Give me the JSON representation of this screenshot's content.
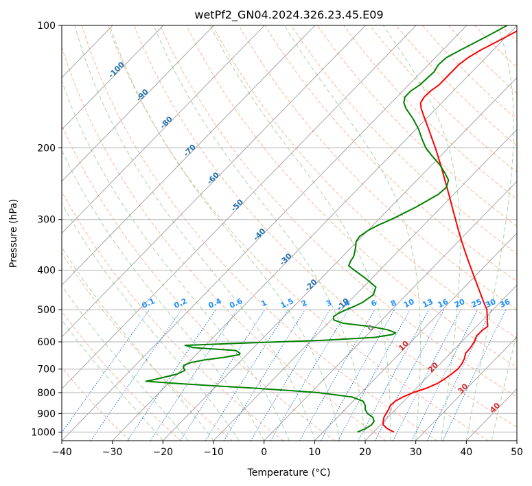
{
  "chart_data": {
    "type": "line",
    "title": "wetPf2_GN04.2024.326.23.45.E09",
    "xlabel": "Temperature (°C)",
    "ylabel": "Pressure (hPa)",
    "xlim": [
      -40,
      50
    ],
    "ylim": [
      1050,
      100
    ],
    "y_scale": "log",
    "x_ticks": [
      -40,
      -30,
      -20,
      -10,
      0,
      10,
      20,
      30,
      40,
      50
    ],
    "y_ticks": [
      100,
      200,
      300,
      400,
      500,
      600,
      700,
      800,
      900,
      1000
    ],
    "grid": true,
    "colors": {
      "temperature": "#ff0000",
      "dewpoint": "#008000",
      "dry_adiabat": "#ffa07a",
      "moist_adiabat": "#90c890",
      "mixing_ratio": "#1f77e0",
      "isotherm": "#808080",
      "isotherm_label": "#1f6fb0",
      "moist_label": "#d62728",
      "mixing_label": "#1e90ff"
    },
    "isotherm_labels": [
      "-100",
      "-90",
      "-80",
      "-70",
      "-60",
      "-50",
      "-40",
      "-30",
      "-20",
      "-10",
      "0",
      "10",
      "20",
      "30",
      "40"
    ],
    "isotherm_label_values": [
      -100,
      -90,
      -80,
      -70,
      -60,
      -50,
      -40,
      -30,
      -20,
      -10,
      0,
      10,
      20,
      30,
      40
    ],
    "mixing_ratio_labels": [
      "0.1",
      "0.2",
      "0.4",
      "0.6",
      "1",
      "1.5",
      "2",
      "3",
      "4",
      "6",
      "8",
      "10",
      "13",
      "16",
      "20",
      "25",
      "30",
      "36"
    ],
    "mixing_ratio_values": [
      0.1,
      0.2,
      0.4,
      0.6,
      1,
      1.5,
      2,
      3,
      4,
      6,
      8,
      10,
      13,
      16,
      20,
      25,
      30,
      36
    ],
    "series": [
      {
        "key": "temperature",
        "points": [
          [
            1000,
            24.0
          ],
          [
            980,
            22.0
          ],
          [
            960,
            20.5
          ],
          [
            940,
            19.8
          ],
          [
            920,
            19.2
          ],
          [
            900,
            18.9
          ],
          [
            880,
            18.6
          ],
          [
            860,
            18.2
          ],
          [
            840,
            18.3
          ],
          [
            820,
            19.0
          ],
          [
            800,
            20.2
          ],
          [
            780,
            22.0
          ],
          [
            760,
            23.2
          ],
          [
            740,
            23.8
          ],
          [
            720,
            24.2
          ],
          [
            700,
            24.5
          ],
          [
            680,
            24.3
          ],
          [
            660,
            23.8
          ],
          [
            640,
            23.0
          ],
          [
            620,
            22.9
          ],
          [
            600,
            22.5
          ],
          [
            580,
            21.8
          ],
          [
            560,
            21.9
          ],
          [
            550,
            22.2
          ],
          [
            540,
            21.5
          ],
          [
            520,
            20.2
          ],
          [
            500,
            18.8
          ],
          [
            480,
            16.8
          ],
          [
            460,
            14.8
          ],
          [
            440,
            12.7
          ],
          [
            420,
            10.5
          ],
          [
            400,
            8.2
          ],
          [
            380,
            5.8
          ],
          [
            360,
            3.3
          ],
          [
            340,
            0.7
          ],
          [
            320,
            -2.0
          ],
          [
            300,
            -4.8
          ],
          [
            280,
            -7.8
          ],
          [
            260,
            -11.0
          ],
          [
            240,
            -14.5
          ],
          [
            220,
            -18.3
          ],
          [
            200,
            -22.6
          ],
          [
            190,
            -25.0
          ],
          [
            180,
            -27.5
          ],
          [
            170,
            -30.2
          ],
          [
            160,
            -33.0
          ],
          [
            155,
            -34.2
          ],
          [
            150,
            -34.6
          ],
          [
            145,
            -34.5
          ],
          [
            140,
            -34.0
          ],
          [
            130,
            -34.0
          ],
          [
            125,
            -34.0
          ],
          [
            120,
            -33.5
          ],
          [
            115,
            -32.5
          ],
          [
            110,
            -31.0
          ],
          [
            105,
            -29.5
          ],
          [
            100,
            -28.0
          ]
        ]
      },
      {
        "key": "dewpoint",
        "points": [
          [
            1000,
            16.8
          ],
          [
            980,
            17.8
          ],
          [
            960,
            18.2
          ],
          [
            940,
            18.0
          ],
          [
            920,
            17.0
          ],
          [
            900,
            15.2
          ],
          [
            880,
            14.0
          ],
          [
            860,
            13.2
          ],
          [
            840,
            12.0
          ],
          [
            820,
            9.0
          ],
          [
            800,
            1.5
          ],
          [
            790,
            -5.0
          ],
          [
            780,
            -12.0
          ],
          [
            770,
            -20.0
          ],
          [
            760,
            -28.0
          ],
          [
            750,
            -34.8
          ],
          [
            740,
            -33.0
          ],
          [
            720,
            -30.0
          ],
          [
            705,
            -29.2
          ],
          [
            695,
            -30.0
          ],
          [
            685,
            -30.4
          ],
          [
            675,
            -29.6
          ],
          [
            665,
            -27.5
          ],
          [
            655,
            -24.0
          ],
          [
            645,
            -21.5
          ],
          [
            640,
            -21.6
          ],
          [
            630,
            -23.0
          ],
          [
            620,
            -32.0
          ],
          [
            612,
            -34.0
          ],
          [
            605,
            -24.0
          ],
          [
            595,
            -8.0
          ],
          [
            585,
            2.0
          ],
          [
            575,
            5.0
          ],
          [
            570,
            5.2
          ],
          [
            560,
            3.0
          ],
          [
            550,
            -1.0
          ],
          [
            540,
            -7.0
          ],
          [
            530,
            -9.5
          ],
          [
            520,
            -10.2
          ],
          [
            510,
            -9.8
          ],
          [
            500,
            -9.0
          ],
          [
            490,
            -8.0
          ],
          [
            480,
            -7.2
          ],
          [
            460,
            -6.5
          ],
          [
            440,
            -7.5
          ],
          [
            420,
            -11.0
          ],
          [
            400,
            -15.0
          ],
          [
            390,
            -17.0
          ],
          [
            380,
            -17.5
          ],
          [
            370,
            -17.8
          ],
          [
            360,
            -18.5
          ],
          [
            350,
            -19.3
          ],
          [
            340,
            -20.2
          ],
          [
            330,
            -20.5
          ],
          [
            320,
            -20.0
          ],
          [
            310,
            -19.0
          ],
          [
            300,
            -17.5
          ],
          [
            280,
            -15.0
          ],
          [
            260,
            -13.0
          ],
          [
            250,
            -12.8
          ],
          [
            240,
            -13.8
          ],
          [
            230,
            -16.0
          ],
          [
            220,
            -18.5
          ],
          [
            210,
            -21.5
          ],
          [
            200,
            -24.5
          ],
          [
            190,
            -27.0
          ],
          [
            180,
            -29.5
          ],
          [
            170,
            -32.5
          ],
          [
            160,
            -36.0
          ],
          [
            155,
            -37.5
          ],
          [
            150,
            -38.4
          ],
          [
            145,
            -38.4
          ],
          [
            140,
            -37.8
          ],
          [
            130,
            -37.5
          ],
          [
            125,
            -38.0
          ],
          [
            120,
            -37.8
          ],
          [
            115,
            -36.5
          ],
          [
            110,
            -35.0
          ],
          [
            105,
            -33.5
          ],
          [
            100,
            -32.0
          ]
        ]
      }
    ]
  }
}
